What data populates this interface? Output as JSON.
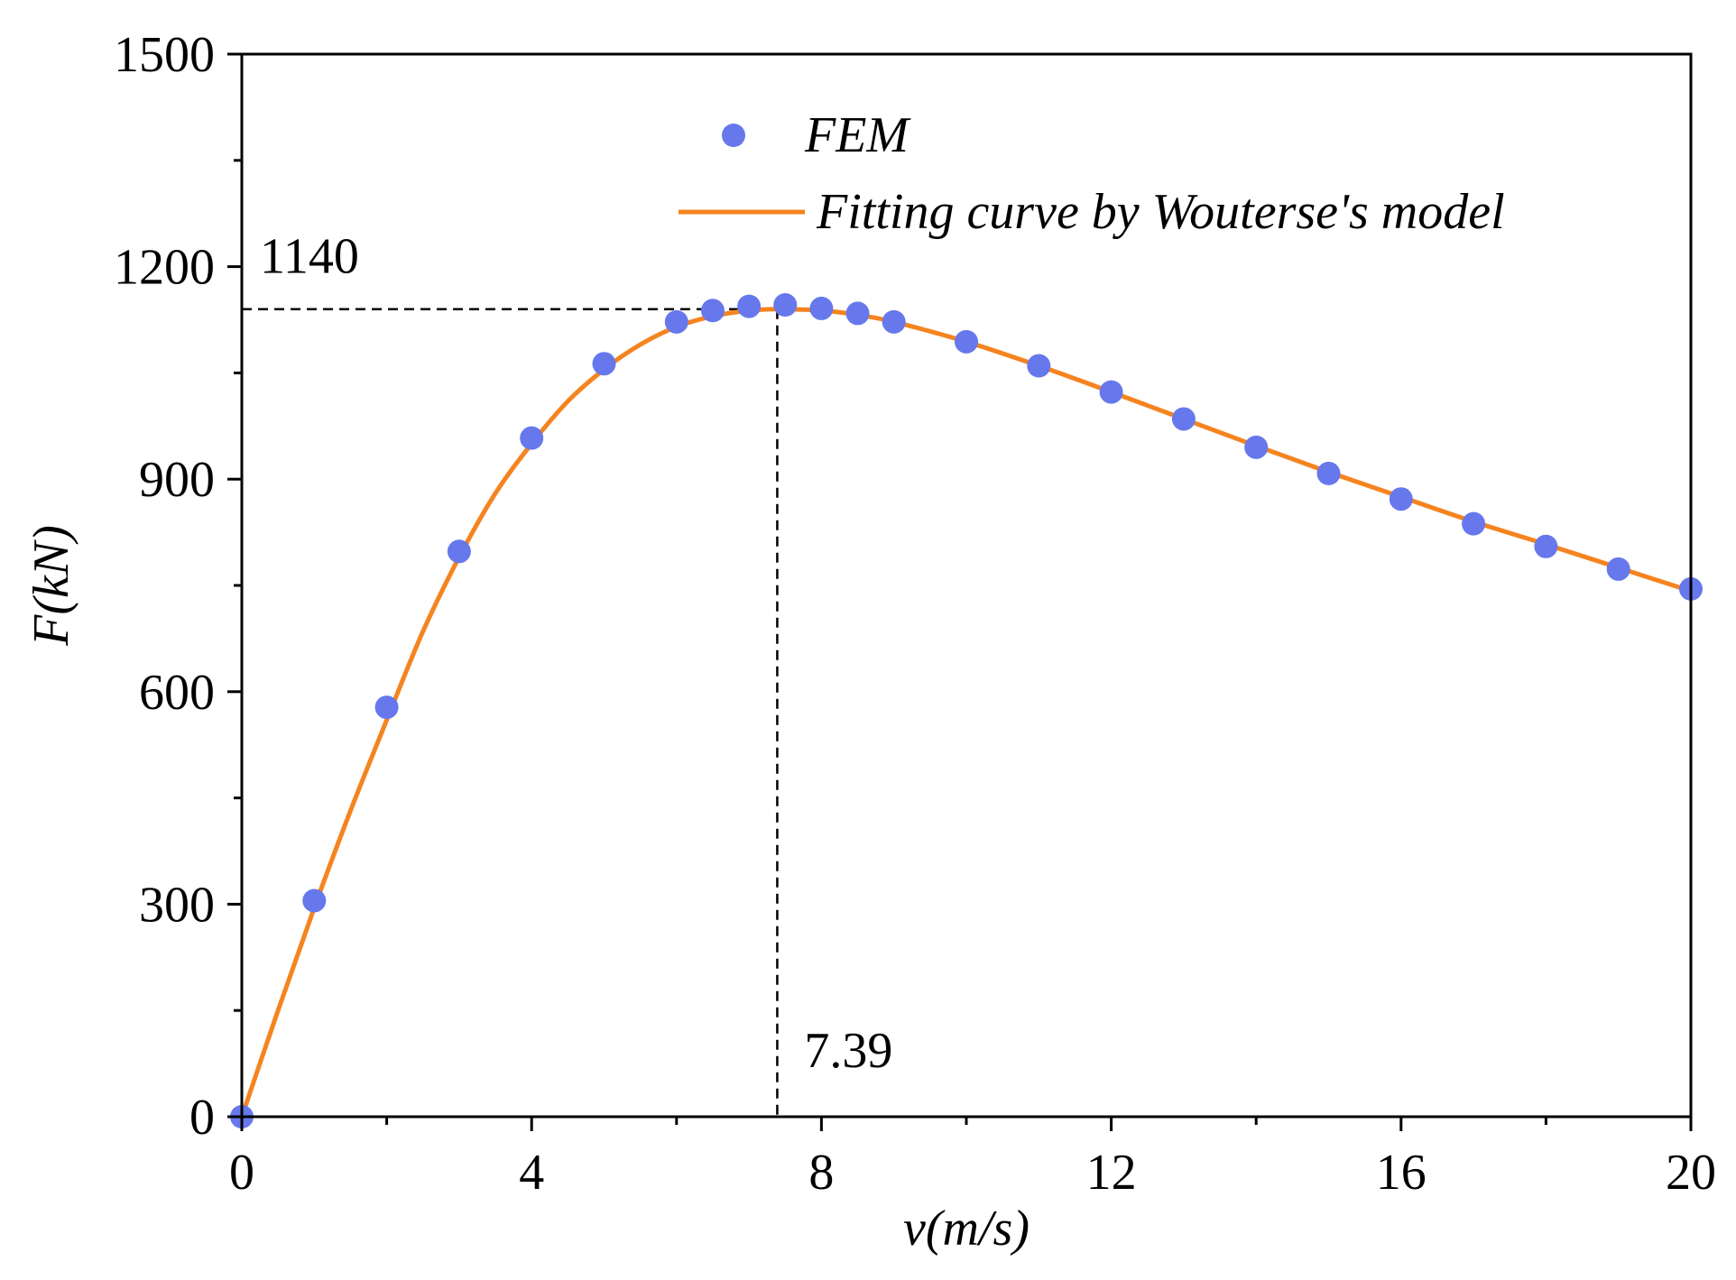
{
  "chart_data": {
    "type": "scatter",
    "title": "",
    "xlabel": "v(m/s)",
    "ylabel": "F(kN)",
    "xlim": [
      0,
      20
    ],
    "ylim": [
      0,
      1500
    ],
    "xticks": [
      0,
      4,
      8,
      12,
      16,
      20
    ],
    "yticks": [
      0,
      300,
      600,
      900,
      1200,
      1500
    ],
    "x_minor_step": 2,
    "y_minor_step": 150,
    "grid": false,
    "legend_position": "top-right",
    "colors": {
      "fem": "#6678ec",
      "fit": "#f5841f",
      "axis": "#000000",
      "guide": "#000000"
    },
    "series": [
      {
        "name": "FEM",
        "kind": "scatter",
        "x": [
          0,
          1,
          2,
          3,
          4,
          5,
          6,
          6.5,
          7,
          7.5,
          8,
          8.5,
          9,
          10,
          11,
          12,
          13,
          14,
          15,
          16,
          17,
          18,
          19,
          20
        ],
        "y": [
          0,
          305,
          578,
          798,
          958,
          1063,
          1122,
          1138,
          1144,
          1146,
          1141,
          1134,
          1122,
          1094,
          1060,
          1023,
          985,
          945,
          908,
          872,
          837,
          805,
          773,
          745
        ]
      },
      {
        "name": "Fitting curve by Wouterse's model",
        "kind": "line",
        "x": [
          0,
          0.5,
          1,
          1.5,
          2,
          2.5,
          3,
          3.5,
          4,
          4.5,
          5,
          5.5,
          6,
          6.5,
          7,
          7.39,
          8,
          8.5,
          9,
          10,
          11,
          12,
          13,
          14,
          15,
          16,
          17,
          18,
          19,
          20
        ],
        "y": [
          0,
          150,
          295,
          432,
          560,
          685,
          790,
          880,
          950,
          1010,
          1055,
          1090,
          1115,
          1130,
          1138,
          1140,
          1138,
          1132,
          1122,
          1094,
          1060,
          1023,
          985,
          947,
          910,
          875,
          840,
          808,
          775,
          742
        ]
      }
    ],
    "annotations": [
      {
        "label": "1140",
        "x": 7.39,
        "y": 1140
      },
      {
        "label": "7.39",
        "x": 7.39,
        "y": 1140
      }
    ]
  }
}
